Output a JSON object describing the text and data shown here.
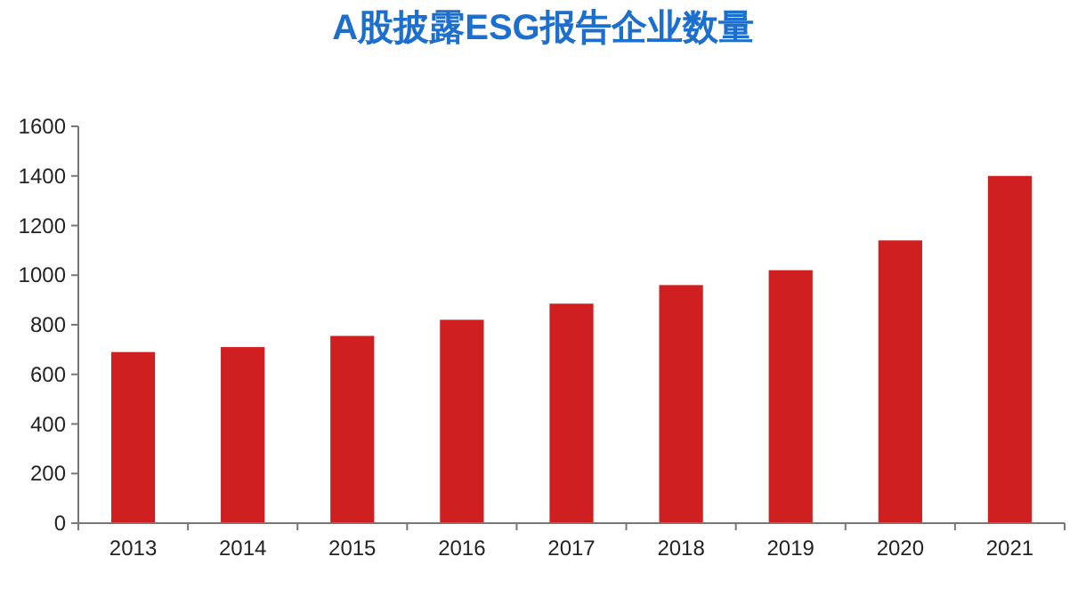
{
  "chart_data": {
    "type": "bar",
    "title": "A股披露ESG报告企业数量",
    "categories": [
      "2013",
      "2014",
      "2015",
      "2016",
      "2017",
      "2018",
      "2019",
      "2020",
      "2021"
    ],
    "values": [
      690,
      710,
      755,
      820,
      885,
      960,
      1020,
      1140,
      1400
    ],
    "color": "#d01f20",
    "ylim": [
      0,
      1600
    ],
    "yticks": [
      0,
      200,
      400,
      600,
      800,
      1000,
      1200,
      1400,
      1600
    ],
    "grid": false
  }
}
